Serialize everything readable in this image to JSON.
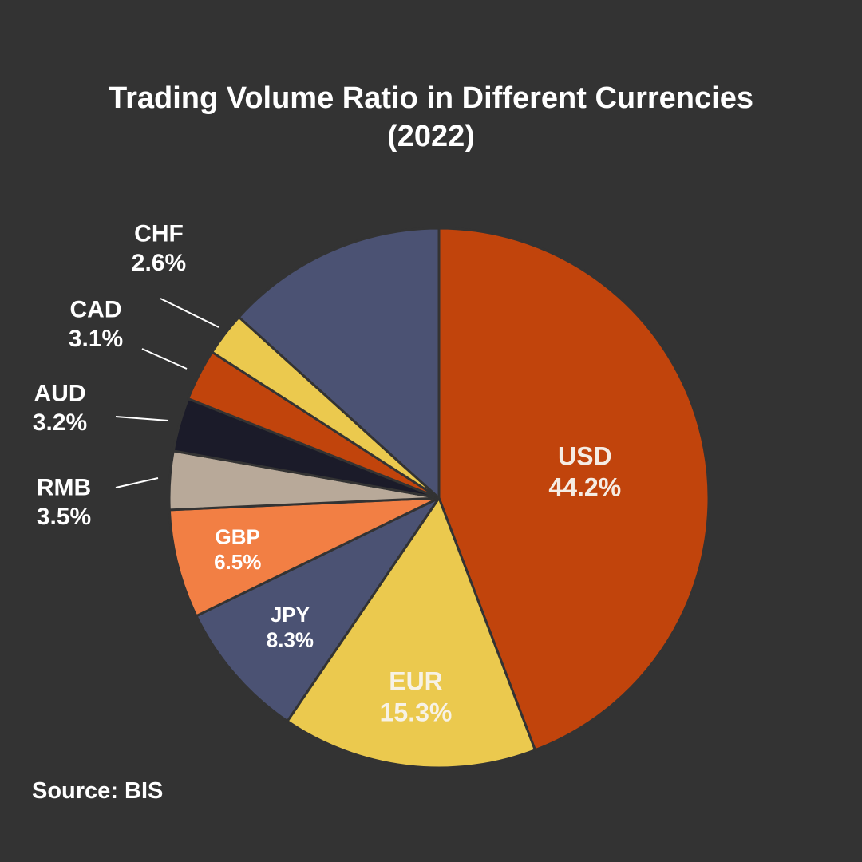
{
  "title_line1": "Trading Volume Ratio in Different Currencies",
  "title_line2": "(2022)",
  "source": "Source: BIS",
  "colors": {
    "background": "#333333",
    "USD": "#c1440c",
    "EUR": "#ebc94e",
    "JPY": "#4b5273",
    "GBP": "#f27f44",
    "RMB": "#b8a999",
    "AUD": "#1b1b29",
    "CAD": "#c1440c",
    "CHF": "#ebc94e",
    "Other": "#4b5273"
  },
  "chart_data": {
    "type": "pie",
    "title": "Trading Volume Ratio in Different Currencies (2022)",
    "unit": "%",
    "slices": [
      {
        "label": "USD",
        "value": 44.2,
        "display": "44.2%"
      },
      {
        "label": "EUR",
        "value": 15.3,
        "display": "15.3%"
      },
      {
        "label": "JPY",
        "value": 8.3,
        "display": "8.3%"
      },
      {
        "label": "GBP",
        "value": 6.5,
        "display": "6.5%"
      },
      {
        "label": "RMB",
        "value": 3.5,
        "display": "3.5%"
      },
      {
        "label": "AUD",
        "value": 3.2,
        "display": "3.2%"
      },
      {
        "label": "CAD",
        "value": 3.1,
        "display": "3.1%"
      },
      {
        "label": "CHF",
        "value": 2.6,
        "display": "2.6%"
      },
      {
        "label": "",
        "value": 13.3,
        "display": ""
      }
    ],
    "label_placement": {
      "USD": "inside",
      "EUR": "inside",
      "JPY": "inside",
      "GBP": "inside",
      "RMB": "outside",
      "AUD": "outside",
      "CAD": "outside",
      "CHF": "outside"
    },
    "source": "BIS"
  }
}
